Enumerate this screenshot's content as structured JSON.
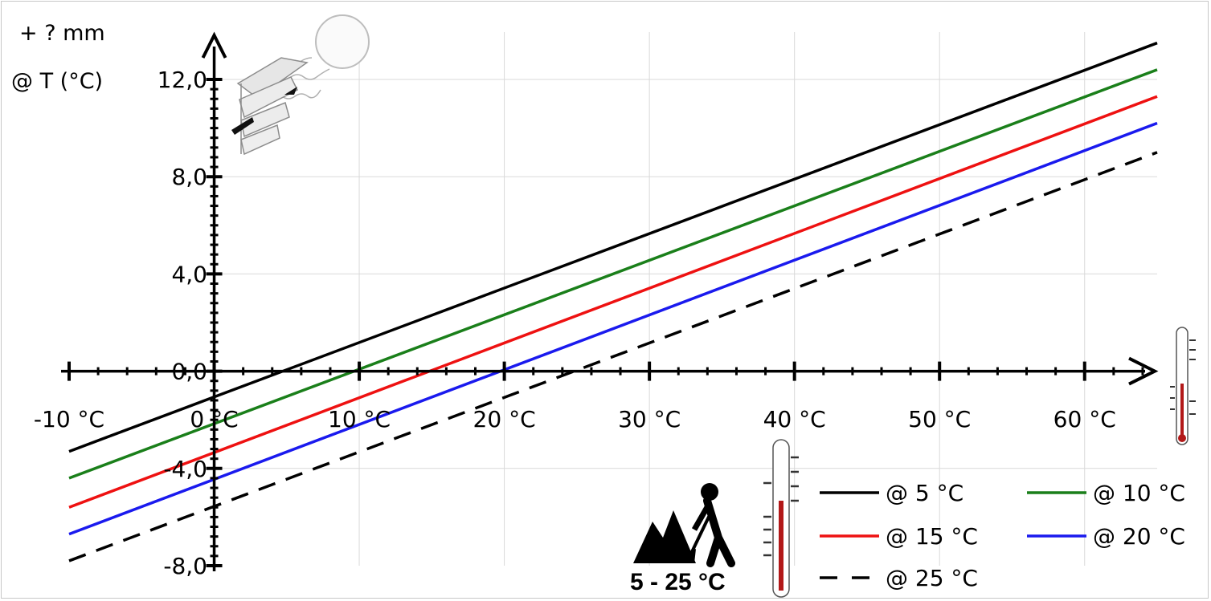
{
  "chart_data": {
    "type": "line",
    "xlabel": "",
    "ylabel_lines": [
      "+ ? mm",
      "@ T (°C)"
    ],
    "x_ticks": [
      -10,
      0,
      10,
      20,
      30,
      40,
      50,
      60
    ],
    "x_tick_labels": [
      "-10 °C",
      "0 °C",
      "10 °C",
      "20 °C",
      "30 °C",
      "40 °C",
      "50 °C",
      "60 °C"
    ],
    "y_ticks": [
      -8,
      -4,
      0,
      4,
      8,
      12
    ],
    "y_tick_labels": [
      "-8,0",
      "-4,0",
      "0,0",
      "4,0",
      "8,0",
      "12,0"
    ],
    "xlim": [
      -10,
      65
    ],
    "ylim": [
      -8,
      12
    ],
    "grid": true,
    "legend_position": "bottom-right",
    "series": [
      {
        "name": "@ 5 °C",
        "color": "#000000",
        "dash": false,
        "points": [
          [
            -10,
            -3.3
          ],
          [
            65,
            13.5
          ]
        ]
      },
      {
        "name": "@ 10 °C",
        "color": "#1a7f1a",
        "dash": false,
        "points": [
          [
            -10,
            -4.4
          ],
          [
            65,
            12.4
          ]
        ]
      },
      {
        "name": "@ 15 °C",
        "color": "#ee1111",
        "dash": false,
        "points": [
          [
            -10,
            -5.6
          ],
          [
            65,
            11.3
          ]
        ]
      },
      {
        "name": "@ 20 °C",
        "color": "#1a1aee",
        "dash": false,
        "points": [
          [
            -10,
            -6.7
          ],
          [
            65,
            10.2
          ]
        ]
      },
      {
        "name": "@ 25 °C",
        "color": "#000000",
        "dash": true,
        "points": [
          [
            -10,
            -7.8
          ],
          [
            65,
            9.0
          ]
        ]
      }
    ],
    "annotation": "5 - 25 °C"
  }
}
